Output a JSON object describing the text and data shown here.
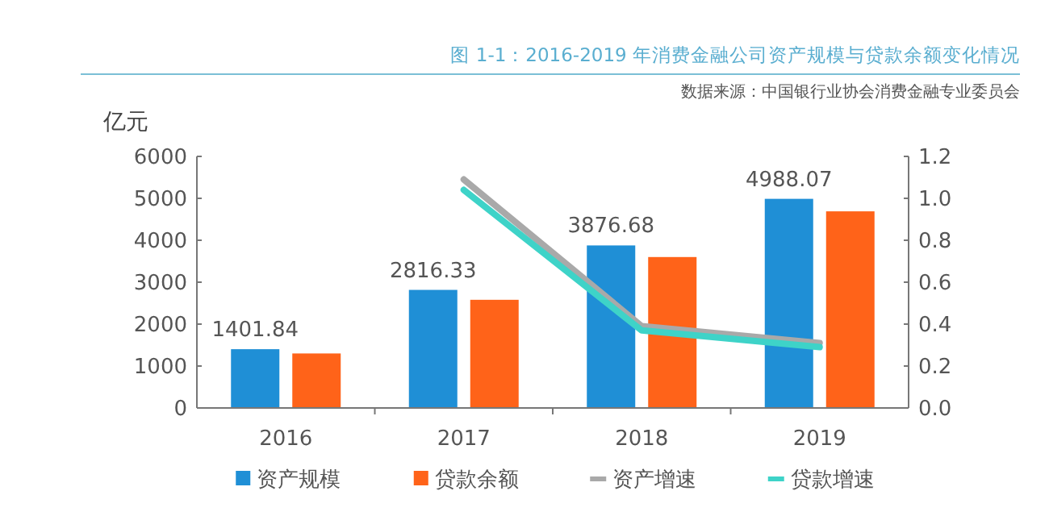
{
  "chart_data": {
    "type": "bar",
    "title": "图 1-1：2016-2019 年消费金融公司资产规模与贷款余额变化情况",
    "annotations": [
      "数据来源：中国银行业协会消费金融专业委员会"
    ],
    "ylabel": "亿元",
    "categories": [
      "2016",
      "2017",
      "2018",
      "2019"
    ],
    "series": [
      {
        "name": "资产规模",
        "color": "#1f8fd6",
        "values": [
          1401.84,
          2816.33,
          3876.68,
          4988.07
        ],
        "value_labels": [
          "1401.84",
          "2816.33",
          "3876.68",
          "4988.07"
        ]
      },
      {
        "name": "贷款余额",
        "color": "#ff6319",
        "values": [
          1300,
          2580,
          3600,
          4690
        ]
      },
      {
        "name": "资产增速",
        "type": "line",
        "axis": "y2",
        "color": "#a9a9a9",
        "values": [
          null,
          1.09,
          0.39,
          0.31
        ]
      },
      {
        "name": "贷款增速",
        "type": "line",
        "axis": "y2",
        "color": "#3ed3c8",
        "values": [
          null,
          1.04,
          0.37,
          0.29
        ]
      }
    ],
    "ylim": [
      0,
      6000
    ],
    "yticks": [
      0,
      1000,
      2000,
      3000,
      4000,
      5000,
      6000
    ],
    "y2lim": [
      0,
      1.2
    ],
    "y2ticks": [
      {
        "value": 0,
        "label": "0.0"
      },
      {
        "value": 0.2,
        "label": "0.2"
      },
      {
        "value": 0.4,
        "label": "0.4"
      },
      {
        "value": 0.6,
        "label": "0.6"
      },
      {
        "value": 0.8,
        "label": "0.8"
      },
      {
        "value": 1,
        "label": "1.0"
      },
      {
        "value": 1.2,
        "label": "1.2"
      }
    ],
    "legend": "bottom",
    "grid": false
  }
}
